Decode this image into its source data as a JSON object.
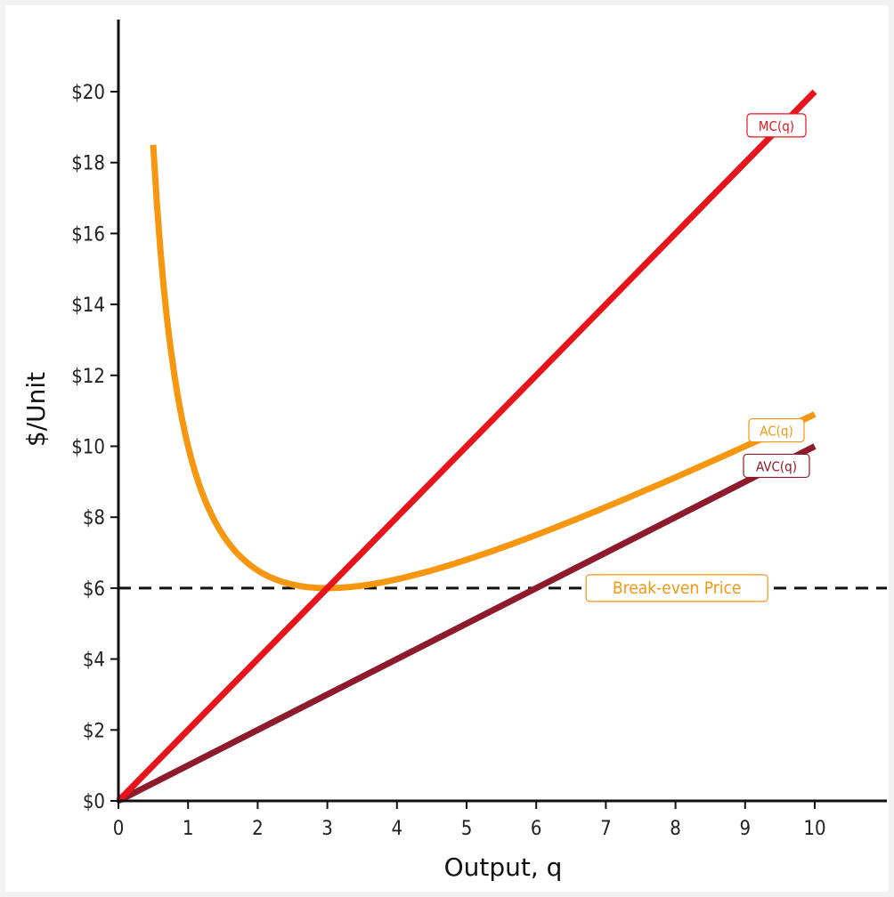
{
  "chart_data": {
    "type": "line",
    "title": "",
    "xlabel": "Output, q",
    "ylabel": "$/Unit",
    "xlim": [
      0,
      11
    ],
    "ylim": [
      0,
      22
    ],
    "x_ticks": [
      0,
      1,
      2,
      3,
      4,
      5,
      6,
      7,
      8,
      9,
      10
    ],
    "x_tick_labels": [
      "0",
      "1",
      "2",
      "3",
      "4",
      "5",
      "6",
      "7",
      "8",
      "9",
      "10"
    ],
    "y_ticks": [
      0,
      2,
      4,
      6,
      8,
      10,
      12,
      14,
      16,
      18,
      20
    ],
    "y_tick_labels": [
      "$0",
      "$2",
      "$4",
      "$6",
      "$8",
      "$10",
      "$12",
      "$14",
      "$16",
      "$18",
      "$20"
    ],
    "grid": false,
    "legend": "none",
    "series": [
      {
        "name": "MC(q)",
        "color": "#e8141c",
        "formula": "2q",
        "x": [
          0,
          10
        ],
        "y": [
          0,
          20
        ]
      },
      {
        "name": "AVC(q)",
        "color": "#8e1b2b",
        "formula": "q",
        "x": [
          0,
          10
        ],
        "y": [
          0,
          10
        ]
      },
      {
        "name": "AC(q)",
        "color": "#f7960f",
        "formula": "q + 9/q",
        "x": [
          0.5,
          1,
          1.5,
          2,
          2.5,
          3,
          4,
          5,
          6,
          7,
          8,
          9,
          10
        ],
        "y": [
          18.5,
          10,
          7.5,
          6.5,
          6.1,
          6,
          6.25,
          6.8,
          7.5,
          8.29,
          9.13,
          10,
          10.9
        ]
      }
    ],
    "hlines": [
      {
        "name": "Break-even Price",
        "y": 6,
        "color": "#111111",
        "style": "dashed",
        "label_color": "#f7960f"
      }
    ],
    "labels": {
      "mc": "MC(q)",
      "ac": "AC(q)",
      "avc": "AVC(q)",
      "break_even": "Break-even Price"
    }
  }
}
